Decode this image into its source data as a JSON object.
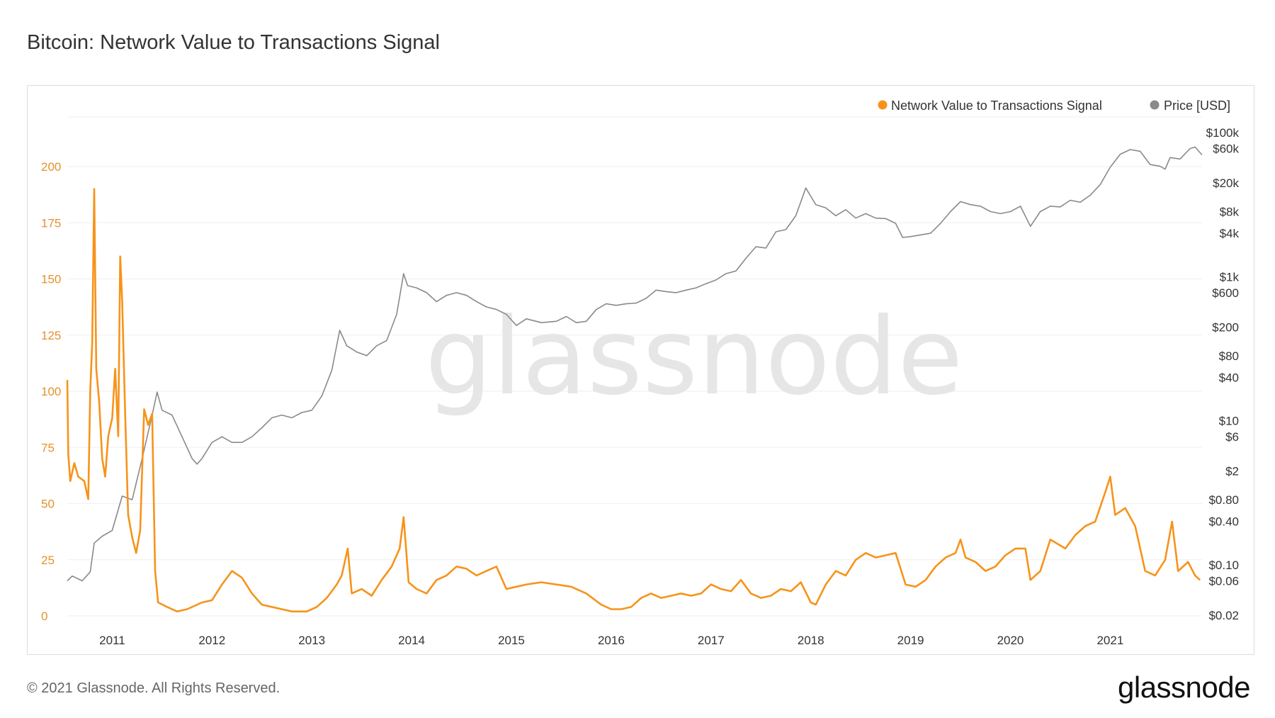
{
  "title": "Bitcoin: Network Value to Transactions Signal",
  "footer": "© 2021 Glassnode. All Rights Reserved.",
  "brand": "glassnode",
  "watermark": "glassnode",
  "chart_data": {
    "type": "line",
    "x_axis": {
      "type": "date",
      "tick_labels": [
        "2011",
        "2012",
        "2013",
        "2014",
        "2015",
        "2016",
        "2017",
        "2018",
        "2019",
        "2020",
        "2021"
      ],
      "range": [
        2010.55,
        2021.92
      ]
    },
    "y_axis_left": {
      "tick_labels": [
        "0",
        "25",
        "50",
        "75",
        "100",
        "125",
        "150",
        "175",
        "200"
      ],
      "range": [
        0,
        220
      ]
    },
    "y_axis_right": {
      "scale": "log",
      "tick_labels": [
        "$0.02",
        "$0.06",
        "$0.10",
        "$0.40",
        "$0.80",
        "$2",
        "$6",
        "$10",
        "$40",
        "$80",
        "$200",
        "$600",
        "$1k",
        "$4k",
        "$8k",
        "$20k",
        "$60k",
        "$100k"
      ],
      "tick_values": [
        0.02,
        0.06,
        0.1,
        0.4,
        0.8,
        2,
        6,
        10,
        40,
        80,
        200,
        600,
        1000,
        4000,
        8000,
        20000,
        60000,
        100000
      ],
      "range": [
        0.02,
        100000
      ]
    },
    "legend": {
      "placement": "top-right"
    },
    "colors": {
      "nvts": "#f7931a",
      "price": "#8a8a8a",
      "left_axis": "#e3922b"
    },
    "series": [
      {
        "name": "Network Value to Transactions Signal",
        "axis": "left",
        "points": [
          [
            2010.55,
            105
          ],
          [
            2010.56,
            72
          ],
          [
            2010.58,
            60
          ],
          [
            2010.62,
            68
          ],
          [
            2010.66,
            62
          ],
          [
            2010.72,
            60
          ],
          [
            2010.76,
            52
          ],
          [
            2010.78,
            100
          ],
          [
            2010.8,
            122
          ],
          [
            2010.82,
            190
          ],
          [
            2010.84,
            110
          ],
          [
            2010.87,
            95
          ],
          [
            2010.9,
            70
          ],
          [
            2010.93,
            62
          ],
          [
            2010.96,
            80
          ],
          [
            2011.0,
            88
          ],
          [
            2011.03,
            110
          ],
          [
            2011.06,
            80
          ],
          [
            2011.08,
            160
          ],
          [
            2011.1,
            140
          ],
          [
            2011.13,
            90
          ],
          [
            2011.16,
            45
          ],
          [
            2011.2,
            35
          ],
          [
            2011.24,
            28
          ],
          [
            2011.28,
            38
          ],
          [
            2011.32,
            92
          ],
          [
            2011.36,
            85
          ],
          [
            2011.4,
            90
          ],
          [
            2011.43,
            20
          ],
          [
            2011.46,
            6
          ],
          [
            2011.55,
            4
          ],
          [
            2011.65,
            2
          ],
          [
            2011.75,
            3
          ],
          [
            2011.9,
            6
          ],
          [
            2012.0,
            7
          ],
          [
            2012.1,
            14
          ],
          [
            2012.2,
            20
          ],
          [
            2012.3,
            17
          ],
          [
            2012.4,
            10
          ],
          [
            2012.5,
            5
          ],
          [
            2012.6,
            4
          ],
          [
            2012.7,
            3
          ],
          [
            2012.8,
            2
          ],
          [
            2012.95,
            2
          ],
          [
            2013.05,
            4
          ],
          [
            2013.15,
            8
          ],
          [
            2013.25,
            14
          ],
          [
            2013.3,
            18
          ],
          [
            2013.36,
            30
          ],
          [
            2013.4,
            10
          ],
          [
            2013.5,
            12
          ],
          [
            2013.6,
            9
          ],
          [
            2013.7,
            16
          ],
          [
            2013.8,
            22
          ],
          [
            2013.88,
            30
          ],
          [
            2013.92,
            44
          ],
          [
            2013.97,
            15
          ],
          [
            2014.05,
            12
          ],
          [
            2014.15,
            10
          ],
          [
            2014.25,
            16
          ],
          [
            2014.35,
            18
          ],
          [
            2014.45,
            22
          ],
          [
            2014.55,
            21
          ],
          [
            2014.65,
            18
          ],
          [
            2014.75,
            20
          ],
          [
            2014.85,
            22
          ],
          [
            2014.95,
            12
          ],
          [
            2015.05,
            13
          ],
          [
            2015.15,
            14
          ],
          [
            2015.3,
            15
          ],
          [
            2015.45,
            14
          ],
          [
            2015.6,
            13
          ],
          [
            2015.75,
            10
          ],
          [
            2015.9,
            5
          ],
          [
            2016.0,
            3
          ],
          [
            2016.1,
            3
          ],
          [
            2016.2,
            4
          ],
          [
            2016.3,
            8
          ],
          [
            2016.4,
            10
          ],
          [
            2016.5,
            8
          ],
          [
            2016.6,
            9
          ],
          [
            2016.7,
            10
          ],
          [
            2016.8,
            9
          ],
          [
            2016.9,
            10
          ],
          [
            2017.0,
            14
          ],
          [
            2017.1,
            12
          ],
          [
            2017.2,
            11
          ],
          [
            2017.3,
            16
          ],
          [
            2017.4,
            10
          ],
          [
            2017.5,
            8
          ],
          [
            2017.6,
            9
          ],
          [
            2017.7,
            12
          ],
          [
            2017.8,
            11
          ],
          [
            2017.9,
            15
          ],
          [
            2018.0,
            6
          ],
          [
            2018.05,
            5
          ],
          [
            2018.15,
            14
          ],
          [
            2018.25,
            20
          ],
          [
            2018.35,
            18
          ],
          [
            2018.45,
            25
          ],
          [
            2018.55,
            28
          ],
          [
            2018.65,
            26
          ],
          [
            2018.75,
            27
          ],
          [
            2018.85,
            28
          ],
          [
            2018.95,
            14
          ],
          [
            2019.05,
            13
          ],
          [
            2019.15,
            16
          ],
          [
            2019.25,
            22
          ],
          [
            2019.35,
            26
          ],
          [
            2019.45,
            28
          ],
          [
            2019.5,
            34
          ],
          [
            2019.55,
            26
          ],
          [
            2019.65,
            24
          ],
          [
            2019.75,
            20
          ],
          [
            2019.85,
            22
          ],
          [
            2019.95,
            27
          ],
          [
            2020.05,
            30
          ],
          [
            2020.15,
            30
          ],
          [
            2020.2,
            16
          ],
          [
            2020.3,
            20
          ],
          [
            2020.4,
            34
          ],
          [
            2020.55,
            30
          ],
          [
            2020.65,
            36
          ],
          [
            2020.75,
            40
          ],
          [
            2020.85,
            42
          ],
          [
            2020.95,
            55
          ],
          [
            2021.0,
            62
          ],
          [
            2021.05,
            45
          ],
          [
            2021.15,
            48
          ],
          [
            2021.25,
            40
          ],
          [
            2021.35,
            20
          ],
          [
            2021.45,
            18
          ],
          [
            2021.55,
            25
          ],
          [
            2021.62,
            42
          ],
          [
            2021.68,
            20
          ],
          [
            2021.78,
            24
          ],
          [
            2021.85,
            18
          ],
          [
            2021.9,
            16
          ]
        ]
      },
      {
        "name": "Price [USD]",
        "axis": "right",
        "points": [
          [
            2010.55,
            0.06
          ],
          [
            2010.6,
            0.07
          ],
          [
            2010.7,
            0.06
          ],
          [
            2010.78,
            0.08
          ],
          [
            2010.82,
            0.2
          ],
          [
            2010.9,
            0.25
          ],
          [
            2011.0,
            0.3
          ],
          [
            2011.1,
            0.9
          ],
          [
            2011.2,
            0.8
          ],
          [
            2011.3,
            3
          ],
          [
            2011.4,
            12
          ],
          [
            2011.45,
            25
          ],
          [
            2011.5,
            14
          ],
          [
            2011.6,
            12
          ],
          [
            2011.7,
            6
          ],
          [
            2011.8,
            3
          ],
          [
            2011.85,
            2.5
          ],
          [
            2011.9,
            3
          ],
          [
            2012.0,
            5
          ],
          [
            2012.1,
            6
          ],
          [
            2012.2,
            5
          ],
          [
            2012.3,
            5
          ],
          [
            2012.4,
            6
          ],
          [
            2012.5,
            8
          ],
          [
            2012.6,
            11
          ],
          [
            2012.7,
            12
          ],
          [
            2012.8,
            11
          ],
          [
            2012.9,
            13
          ],
          [
            2013.0,
            14
          ],
          [
            2013.1,
            22
          ],
          [
            2013.2,
            50
          ],
          [
            2013.28,
            180
          ],
          [
            2013.35,
            110
          ],
          [
            2013.45,
            90
          ],
          [
            2013.55,
            80
          ],
          [
            2013.65,
            110
          ],
          [
            2013.75,
            130
          ],
          [
            2013.85,
            300
          ],
          [
            2013.92,
            1100
          ],
          [
            2013.96,
            750
          ],
          [
            2014.05,
            700
          ],
          [
            2014.15,
            600
          ],
          [
            2014.25,
            450
          ],
          [
            2014.35,
            550
          ],
          [
            2014.45,
            600
          ],
          [
            2014.55,
            550
          ],
          [
            2014.65,
            450
          ],
          [
            2014.75,
            380
          ],
          [
            2014.85,
            350
          ],
          [
            2014.95,
            300
          ],
          [
            2015.05,
            210
          ],
          [
            2015.15,
            260
          ],
          [
            2015.3,
            230
          ],
          [
            2015.45,
            240
          ],
          [
            2015.55,
            280
          ],
          [
            2015.65,
            230
          ],
          [
            2015.75,
            240
          ],
          [
            2015.85,
            350
          ],
          [
            2015.95,
            420
          ],
          [
            2016.05,
            400
          ],
          [
            2016.15,
            420
          ],
          [
            2016.25,
            430
          ],
          [
            2016.35,
            500
          ],
          [
            2016.45,
            650
          ],
          [
            2016.55,
            620
          ],
          [
            2016.65,
            600
          ],
          [
            2016.75,
            650
          ],
          [
            2016.85,
            700
          ],
          [
            2016.95,
            800
          ],
          [
            2017.05,
            900
          ],
          [
            2017.15,
            1100
          ],
          [
            2017.25,
            1200
          ],
          [
            2017.35,
            1800
          ],
          [
            2017.45,
            2600
          ],
          [
            2017.55,
            2500
          ],
          [
            2017.65,
            4200
          ],
          [
            2017.75,
            4500
          ],
          [
            2017.85,
            7000
          ],
          [
            2017.95,
            17000
          ],
          [
            2018.0,
            13000
          ],
          [
            2018.05,
            10000
          ],
          [
            2018.15,
            9000
          ],
          [
            2018.25,
            7000
          ],
          [
            2018.35,
            8500
          ],
          [
            2018.45,
            6500
          ],
          [
            2018.55,
            7500
          ],
          [
            2018.65,
            6500
          ],
          [
            2018.75,
            6400
          ],
          [
            2018.85,
            5500
          ],
          [
            2018.92,
            3500
          ],
          [
            2019.0,
            3600
          ],
          [
            2019.1,
            3800
          ],
          [
            2019.2,
            4000
          ],
          [
            2019.3,
            5500
          ],
          [
            2019.4,
            8000
          ],
          [
            2019.5,
            11000
          ],
          [
            2019.6,
            10000
          ],
          [
            2019.7,
            9500
          ],
          [
            2019.8,
            8000
          ],
          [
            2019.9,
            7500
          ],
          [
            2020.0,
            8000
          ],
          [
            2020.1,
            9500
          ],
          [
            2020.2,
            5000
          ],
          [
            2020.3,
            8000
          ],
          [
            2020.4,
            9500
          ],
          [
            2020.5,
            9300
          ],
          [
            2020.6,
            11500
          ],
          [
            2020.7,
            10800
          ],
          [
            2020.8,
            13500
          ],
          [
            2020.9,
            19000
          ],
          [
            2021.0,
            33000
          ],
          [
            2021.1,
            50000
          ],
          [
            2021.2,
            58000
          ],
          [
            2021.3,
            55000
          ],
          [
            2021.4,
            36000
          ],
          [
            2021.5,
            34000
          ],
          [
            2021.55,
            31000
          ],
          [
            2021.6,
            45000
          ],
          [
            2021.7,
            43000
          ],
          [
            2021.8,
            60000
          ],
          [
            2021.85,
            63000
          ],
          [
            2021.92,
            49000
          ]
        ]
      }
    ]
  }
}
